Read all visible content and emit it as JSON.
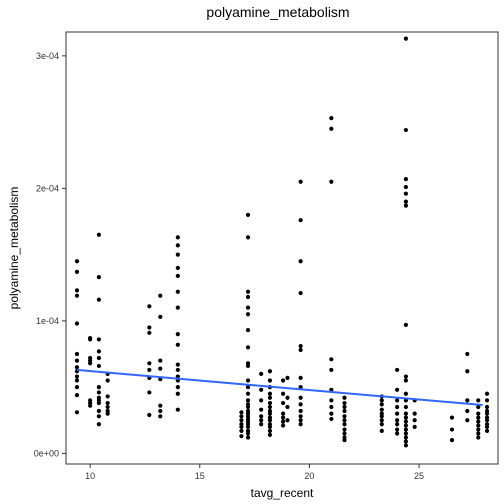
{
  "chart_data": {
    "type": "scatter",
    "title": "polyamine_metabolism",
    "xlabel": "tavg_recent",
    "ylabel": "polyamine_metabolism",
    "xlim": [
      8.9,
      28.6
    ],
    "ylim": [
      -8e-06,
      0.000318
    ],
    "x_ticks": [
      10,
      15,
      20,
      25
    ],
    "x_tick_labels": [
      "10",
      "15",
      "20",
      "25"
    ],
    "y_ticks": [
      0,
      0.0001,
      0.0002,
      0.0003
    ],
    "y_tick_labels": [
      "0e+00",
      "1e-04",
      "2e-04",
      "3e-04"
    ],
    "grid": false,
    "point_color": "#000000",
    "trend_line": {
      "color": "#3366FF",
      "x": [
        9.4,
        27.9
      ],
      "y": [
        6.3e-05,
        3.65e-05
      ]
    },
    "points": [
      [
        9.4,
        0.000145
      ],
      [
        9.4,
        0.000137
      ],
      [
        9.4,
        0.000123
      ],
      [
        9.4,
        0.000119
      ],
      [
        9.4,
        9.8e-05
      ],
      [
        9.4,
        7.5e-05
      ],
      [
        9.4,
        7e-05
      ],
      [
        9.4,
        6.5e-05
      ],
      [
        9.4,
        6.2e-05
      ],
      [
        9.4,
        5.8e-05
      ],
      [
        9.4,
        5.5e-05
      ],
      [
        9.4,
        5e-05
      ],
      [
        9.4,
        4.4e-05
      ],
      [
        9.4,
        3.1e-05
      ],
      [
        10.0,
        8.7e-05
      ],
      [
        10.0,
        8.6e-05
      ],
      [
        10.0,
        7.2e-05
      ],
      [
        10.0,
        7e-05
      ],
      [
        10.0,
        6.8e-05
      ],
      [
        10.0,
        4e-05
      ],
      [
        10.0,
        3.8e-05
      ],
      [
        10.0,
        3.6e-05
      ],
      [
        10.4,
        0.000165
      ],
      [
        10.4,
        0.000133
      ],
      [
        10.4,
        0.000116
      ],
      [
        10.4,
        8.6e-05
      ],
      [
        10.4,
        7.7e-05
      ],
      [
        10.4,
        7.2e-05
      ],
      [
        10.4,
        6.6e-05
      ],
      [
        10.4,
        5e-05
      ],
      [
        10.4,
        4.6e-05
      ],
      [
        10.4,
        4.2e-05
      ],
      [
        10.4,
        4e-05
      ],
      [
        10.4,
        3.8e-05
      ],
      [
        10.4,
        3.2e-05
      ],
      [
        10.4,
        2.8e-05
      ],
      [
        10.4,
        2.2e-05
      ],
      [
        10.8,
        6e-05
      ],
      [
        10.8,
        5.5e-05
      ],
      [
        10.8,
        4.3e-05
      ],
      [
        10.8,
        3.8e-05
      ],
      [
        10.8,
        3.5e-05
      ],
      [
        10.8,
        3.2e-05
      ],
      [
        10.8,
        3e-05
      ],
      [
        12.7,
        0.000111
      ],
      [
        12.7,
        9.5e-05
      ],
      [
        12.7,
        9.1e-05
      ],
      [
        12.7,
        6.8e-05
      ],
      [
        12.7,
        6.3e-05
      ],
      [
        12.7,
        5.7e-05
      ],
      [
        12.7,
        4.6e-05
      ],
      [
        12.7,
        2.9e-05
      ],
      [
        13.2,
        0.000119
      ],
      [
        13.2,
        0.000103
      ],
      [
        13.2,
        7e-05
      ],
      [
        13.2,
        6.4e-05
      ],
      [
        13.2,
        5.6e-05
      ],
      [
        13.2,
        3.6e-05
      ],
      [
        13.2,
        3.2e-05
      ],
      [
        13.2,
        2.8e-05
      ],
      [
        14.0,
        0.000163
      ],
      [
        14.0,
        0.000157
      ],
      [
        14.0,
        0.00015
      ],
      [
        14.0,
        0.00014
      ],
      [
        14.0,
        0.000134
      ],
      [
        14.0,
        0.000122
      ],
      [
        14.0,
        0.00011
      ],
      [
        14.0,
        9e-05
      ],
      [
        14.0,
        8.2e-05
      ],
      [
        14.0,
        6.7e-05
      ],
      [
        14.0,
        6.3e-05
      ],
      [
        14.0,
        5.8e-05
      ],
      [
        14.0,
        5.5e-05
      ],
      [
        14.0,
        5e-05
      ],
      [
        14.0,
        4.5e-05
      ],
      [
        14.0,
        3.3e-05
      ],
      [
        16.9,
        3.1e-05
      ],
      [
        16.9,
        2.8e-05
      ],
      [
        16.9,
        2.5e-05
      ],
      [
        16.9,
        2.2e-05
      ],
      [
        16.9,
        2e-05
      ],
      [
        16.9,
        1.7e-05
      ],
      [
        16.9,
        1.3e-05
      ],
      [
        17.2,
        0.00018
      ],
      [
        17.2,
        0.000163
      ],
      [
        17.2,
        0.000122
      ],
      [
        17.2,
        0.000118
      ],
      [
        17.2,
        0.00011
      ],
      [
        17.2,
        0.000105
      ],
      [
        17.2,
        9.3e-05
      ],
      [
        17.2,
        8e-05
      ],
      [
        17.2,
        6.8e-05
      ],
      [
        17.2,
        6.6e-05
      ],
      [
        17.2,
        5.5e-05
      ],
      [
        17.2,
        5e-05
      ],
      [
        17.2,
        4.5e-05
      ],
      [
        17.2,
        4e-05
      ],
      [
        17.2,
        3.7e-05
      ],
      [
        17.2,
        3.5e-05
      ],
      [
        17.2,
        3.2e-05
      ],
      [
        17.2,
        3e-05
      ],
      [
        17.2,
        2.8e-05
      ],
      [
        17.2,
        2.6e-05
      ],
      [
        17.2,
        2.4e-05
      ],
      [
        17.2,
        2.2e-05
      ],
      [
        17.2,
        2e-05
      ],
      [
        17.2,
        1.7e-05
      ],
      [
        17.2,
        1.5e-05
      ],
      [
        17.2,
        1.2e-05
      ],
      [
        17.8,
        6e-05
      ],
      [
        17.8,
        4.8e-05
      ],
      [
        17.8,
        4e-05
      ],
      [
        17.8,
        3.3e-05
      ],
      [
        17.8,
        2.8e-05
      ],
      [
        17.8,
        2.5e-05
      ],
      [
        17.8,
        2.2e-05
      ],
      [
        18.2,
        6.2e-05
      ],
      [
        18.2,
        5.5e-05
      ],
      [
        18.2,
        5e-05
      ],
      [
        18.2,
        4.5e-05
      ],
      [
        18.2,
        4.2e-05
      ],
      [
        18.2,
        3.8e-05
      ],
      [
        18.2,
        3.5e-05
      ],
      [
        18.2,
        3.2e-05
      ],
      [
        18.2,
        3e-05
      ],
      [
        18.2,
        2.7e-05
      ],
      [
        18.2,
        2.5e-05
      ],
      [
        18.2,
        2.2e-05
      ],
      [
        18.2,
        2e-05
      ],
      [
        18.2,
        1.7e-05
      ],
      [
        18.2,
        1.4e-05
      ],
      [
        18.8,
        5.5e-05
      ],
      [
        18.8,
        4.5e-05
      ],
      [
        18.8,
        3.8e-05
      ],
      [
        18.8,
        3e-05
      ],
      [
        18.8,
        2.7e-05
      ],
      [
        18.8,
        2.4e-05
      ],
      [
        18.8,
        2.1e-05
      ],
      [
        19.0,
        5.7e-05
      ],
      [
        19.0,
        4.2e-05
      ],
      [
        19.0,
        3.5e-05
      ],
      [
        19.0,
        2.5e-05
      ],
      [
        19.6,
        0.000205
      ],
      [
        19.6,
        0.000176
      ],
      [
        19.6,
        0.000145
      ],
      [
        19.6,
        0.000121
      ],
      [
        19.6,
        8.1e-05
      ],
      [
        19.6,
        7.8e-05
      ],
      [
        19.6,
        5.7e-05
      ],
      [
        19.6,
        5e-05
      ],
      [
        19.6,
        4.2e-05
      ],
      [
        19.6,
        3.7e-05
      ],
      [
        19.6,
        3.2e-05
      ],
      [
        19.6,
        2.8e-05
      ],
      [
        19.6,
        2.5e-05
      ],
      [
        19.6,
        2.2e-05
      ],
      [
        21.0,
        0.000253
      ],
      [
        21.0,
        0.000245
      ],
      [
        21.0,
        0.000205
      ],
      [
        21.0,
        7.1e-05
      ],
      [
        21.0,
        6.3e-05
      ],
      [
        21.0,
        4.8e-05
      ],
      [
        21.0,
        4e-05
      ],
      [
        21.0,
        3.5e-05
      ],
      [
        21.0,
        3e-05
      ],
      [
        21.0,
        2.6e-05
      ],
      [
        21.6,
        4.2e-05
      ],
      [
        21.6,
        3.8e-05
      ],
      [
        21.6,
        3.5e-05
      ],
      [
        21.6,
        3.2e-05
      ],
      [
        21.6,
        2.8e-05
      ],
      [
        21.6,
        2.5e-05
      ],
      [
        21.6,
        2.2e-05
      ],
      [
        21.6,
        1.8e-05
      ],
      [
        21.6,
        1.5e-05
      ],
      [
        21.6,
        1.2e-05
      ],
      [
        21.6,
        1e-05
      ],
      [
        23.3,
        4.3e-05
      ],
      [
        23.3,
        4e-05
      ],
      [
        23.3,
        3.7e-05
      ],
      [
        23.3,
        3.3e-05
      ],
      [
        23.3,
        3e-05
      ],
      [
        23.3,
        2.8e-05
      ],
      [
        23.3,
        2.5e-05
      ],
      [
        23.3,
        2.2e-05
      ],
      [
        23.3,
        1.7e-05
      ],
      [
        24.0,
        6.3e-05
      ],
      [
        24.0,
        4.8e-05
      ],
      [
        24.0,
        4e-05
      ],
      [
        24.0,
        3.5e-05
      ],
      [
        24.0,
        3e-05
      ],
      [
        24.0,
        2.5e-05
      ],
      [
        24.0,
        2.2e-05
      ],
      [
        24.0,
        1.8e-05
      ],
      [
        24.0,
        1.5e-05
      ],
      [
        24.4,
        0.000313
      ],
      [
        24.4,
        0.000244
      ],
      [
        24.4,
        0.000207
      ],
      [
        24.4,
        0.000201
      ],
      [
        24.4,
        0.000196
      ],
      [
        24.4,
        0.00019
      ],
      [
        24.4,
        0.000187
      ],
      [
        24.4,
        9.7e-05
      ],
      [
        24.4,
        5.8e-05
      ],
      [
        24.4,
        5.5e-05
      ],
      [
        24.4,
        4.5e-05
      ],
      [
        24.4,
        4e-05
      ],
      [
        24.4,
        3.5e-05
      ],
      [
        24.4,
        3e-05
      ],
      [
        24.4,
        2.7e-05
      ],
      [
        24.4,
        2.4e-05
      ],
      [
        24.4,
        2.1e-05
      ],
      [
        24.4,
        1.8e-05
      ],
      [
        24.4,
        1.5e-05
      ],
      [
        24.4,
        1.2e-05
      ],
      [
        24.4,
        9e-06
      ],
      [
        24.4,
        6e-06
      ],
      [
        24.8,
        4e-05
      ],
      [
        24.8,
        3e-05
      ],
      [
        24.8,
        2.5e-05
      ],
      [
        24.8,
        2e-05
      ],
      [
        26.5,
        2.7e-05
      ],
      [
        26.5,
        1.8e-05
      ],
      [
        26.5,
        1e-05
      ],
      [
        27.2,
        7.5e-05
      ],
      [
        27.2,
        6.2e-05
      ],
      [
        27.2,
        4e-05
      ],
      [
        27.2,
        3.2e-05
      ],
      [
        27.2,
        2.5e-05
      ],
      [
        27.7,
        4e-05
      ],
      [
        27.7,
        3.5e-05
      ],
      [
        27.7,
        3e-05
      ],
      [
        27.7,
        2.7e-05
      ],
      [
        27.7,
        2.4e-05
      ],
      [
        27.7,
        2.1e-05
      ],
      [
        27.7,
        1.8e-05
      ],
      [
        27.7,
        1.5e-05
      ],
      [
        27.7,
        1.2e-05
      ],
      [
        28.1,
        4.5e-05
      ],
      [
        28.1,
        4e-05
      ],
      [
        28.1,
        3.5e-05
      ],
      [
        28.1,
        3.2e-05
      ],
      [
        28.1,
        3e-05
      ],
      [
        28.1,
        2.7e-05
      ],
      [
        28.1,
        2.5e-05
      ],
      [
        28.1,
        2.2e-05
      ],
      [
        28.1,
        2e-05
      ],
      [
        28.1,
        1.7e-05
      ]
    ]
  }
}
